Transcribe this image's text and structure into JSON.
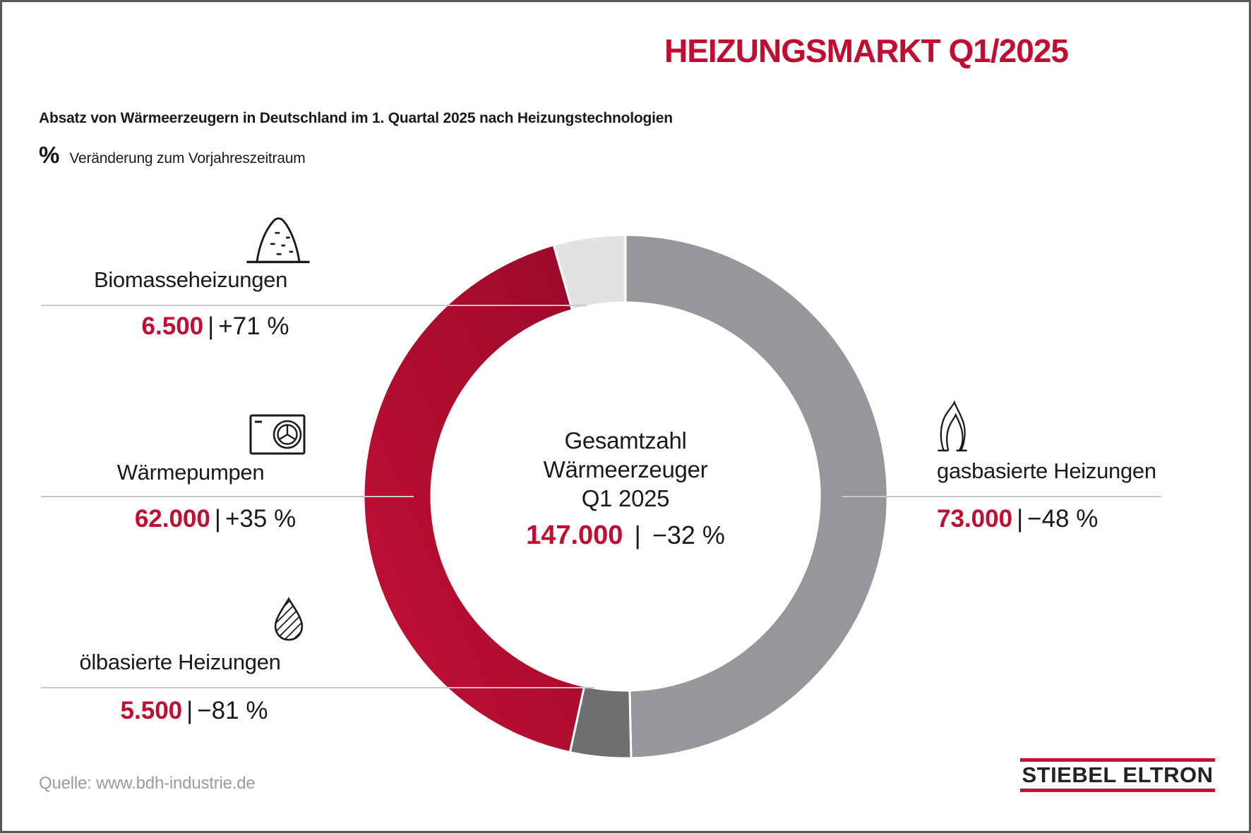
{
  "header": {
    "title": "HEIZUNGSMARKT Q1/2025",
    "subtitle": "Absatz von Wärmeerzeugern in Deutschland im 1. Quartal 2025 nach Heizungstechnologien",
    "legend_symbol": "%",
    "legend_text": "Veränderung zum Vorjahreszeitraum"
  },
  "center": {
    "line1": "Gesamtzahl",
    "line2": "Wärmeerzeuger",
    "line3": "Q1 2025",
    "value": "147.000",
    "change": "−32 %"
  },
  "ui": {
    "pipe": "|"
  },
  "annotations": {
    "biomass": {
      "label": "Biomasseheizungen",
      "value": "6.500",
      "change": "+71 %",
      "icon": "biomass-pile-icon"
    },
    "heatpump": {
      "label": "Wärmepumpen",
      "value": "62.000",
      "change": "+35 %",
      "icon": "heat-pump-icon"
    },
    "oil": {
      "label": "ölbasierte Heizungen",
      "value": "5.500",
      "change": "−81 %",
      "icon": "oil-drop-icon"
    },
    "gas": {
      "label": "gasbasierte Heizungen",
      "value": "73.000",
      "change": "−48 %",
      "icon": "gas-flame-icon"
    }
  },
  "footer": {
    "source": "Quelle: www.bdh-industrie.de",
    "logo": "STIEBEL ELTRON"
  },
  "colors": {
    "brand_red": "#C00D31",
    "logo_red": "#C8102E",
    "leader_line": "#C8C8CB",
    "source_gray": "#9B9B9B",
    "frame_gray": "#58585A"
  },
  "chart_data": {
    "type": "pie",
    "donut": true,
    "title": "Absatz von Wärmeerzeugern in Deutschland im 1. Quartal 2025 nach Heizungstechnologien",
    "start_angle_deg": 0,
    "direction": "clockwise",
    "outer_radius": 371,
    "inner_radius": 275,
    "segments": [
      {
        "label": "gasbasierte Heizungen",
        "value": 73000,
        "display_value": "73.000",
        "change_pct": -48,
        "color": "#96979B"
      },
      {
        "label": "ölbasierte Heizungen",
        "value": 5500,
        "display_value": "5.500",
        "change_pct": -81,
        "color": "#6E6F71"
      },
      {
        "label": "Wärmepumpen",
        "value": 62000,
        "display_value": "62.000",
        "change_pct": 35,
        "color": "#B00D31",
        "gradient": [
          "#9A0A29",
          "#C40F35"
        ]
      },
      {
        "label": "Biomasseheizungen",
        "value": 6500,
        "display_value": "6.500",
        "change_pct": 71,
        "color": "#E2E2E3"
      }
    ],
    "total": {
      "label": "Gesamtzahl Wärmeerzeuger Q1 2025",
      "value": 147000,
      "display_value": "147.000",
      "change_pct": -32
    }
  }
}
